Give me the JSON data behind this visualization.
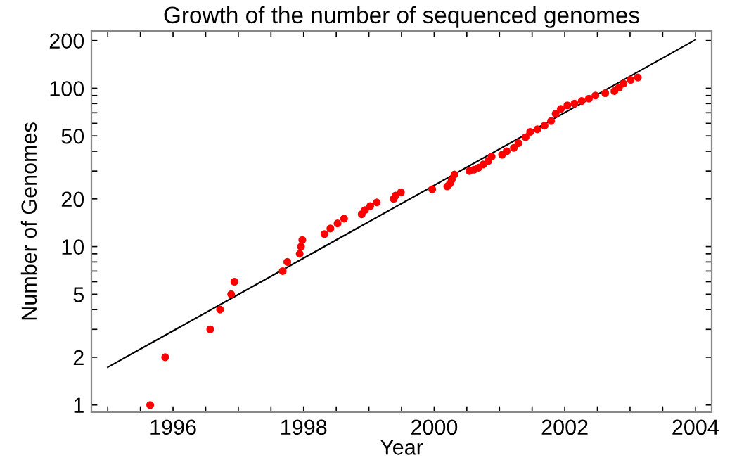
{
  "chart_data": {
    "type": "scatter",
    "title": "Growth of the number of sequenced genomes",
    "xlabel": "Year",
    "ylabel": "Number of Genomes",
    "log": "y",
    "grid": false,
    "xlim": [
      1994.75,
      2004.25
    ],
    "ylim": [
      0.9,
      230
    ],
    "xticks": [
      {
        "value": 1995,
        "label": null
      },
      {
        "value": 1995.5,
        "label": null
      },
      1996,
      {
        "value": 1996.5,
        "label": null
      },
      {
        "value": 1997,
        "label": null
      },
      {
        "value": 1997.5,
        "label": null
      },
      1998,
      {
        "value": 1998.5,
        "label": null
      },
      {
        "value": 1999,
        "label": null
      },
      {
        "value": 1999.5,
        "label": null
      },
      2000,
      {
        "value": 2000.5,
        "label": null
      },
      {
        "value": 2001,
        "label": null
      },
      {
        "value": 2001.5,
        "label": null
      },
      2002,
      {
        "value": 2002.5,
        "label": null
      },
      {
        "value": 2003,
        "label": null
      },
      {
        "value": 2003.5,
        "label": null
      },
      2004
    ],
    "yticks": [
      1,
      2,
      {
        "value": 3,
        "label": null
      },
      {
        "value": 4,
        "label": null
      },
      5,
      {
        "value": 6,
        "label": null
      },
      {
        "value": 7,
        "label": null
      },
      {
        "value": 8,
        "label": null
      },
      {
        "value": 9,
        "label": null
      },
      10,
      20,
      {
        "value": 30,
        "label": null
      },
      {
        "value": 40,
        "label": null
      },
      50,
      {
        "value": 60,
        "label": null
      },
      {
        "value": 70,
        "label": null
      },
      {
        "value": 80,
        "label": null
      },
      {
        "value": 90,
        "label": null
      },
      100,
      200
    ],
    "series": [
      {
        "marker": "circle",
        "color": "#ff0000",
        "x": [
          1995.65,
          1995.88,
          1996.57,
          1996.72,
          1996.89,
          1996.94,
          1997.68,
          1997.75,
          1997.94,
          1997.96,
          1997.98,
          1998.32,
          1998.41,
          1998.52,
          1998.62,
          1998.89,
          1998.94,
          1999.02,
          1999.12,
          1999.38,
          1999.41,
          1999.49,
          1999.97,
          2000.2,
          2000.24,
          2000.27,
          2000.31,
          2000.54,
          2000.61,
          2000.68,
          2000.75,
          2000.83,
          2000.88,
          2001.04,
          2001.11,
          2001.22,
          2001.29,
          2001.4,
          2001.47,
          2001.58,
          2001.69,
          2001.79,
          2001.86,
          2001.94,
          2002.04,
          2002.15,
          2002.26,
          2002.37,
          2002.47,
          2002.62,
          2002.76,
          2002.83,
          2002.9,
          2003.01,
          2003.12
        ],
        "values": [
          1,
          2,
          3,
          4,
          5,
          6,
          7,
          8,
          9,
          10,
          11,
          12,
          13,
          14,
          15,
          16,
          17,
          18,
          19,
          20,
          21,
          22,
          23,
          24,
          25,
          26.5,
          28.5,
          30,
          30.6,
          31.5,
          33,
          34.7,
          37,
          38,
          40,
          42,
          45,
          49,
          53,
          55,
          58,
          62,
          69,
          74,
          78,
          80,
          83,
          86,
          90,
          93,
          96,
          101,
          107,
          113,
          117
        ]
      },
      {
        "type": "line",
        "marker": "none",
        "color": "#000000",
        "line_style": "solid",
        "x": [
          1995,
          2004
        ],
        "values": [
          1.73,
          202
        ]
      }
    ]
  }
}
